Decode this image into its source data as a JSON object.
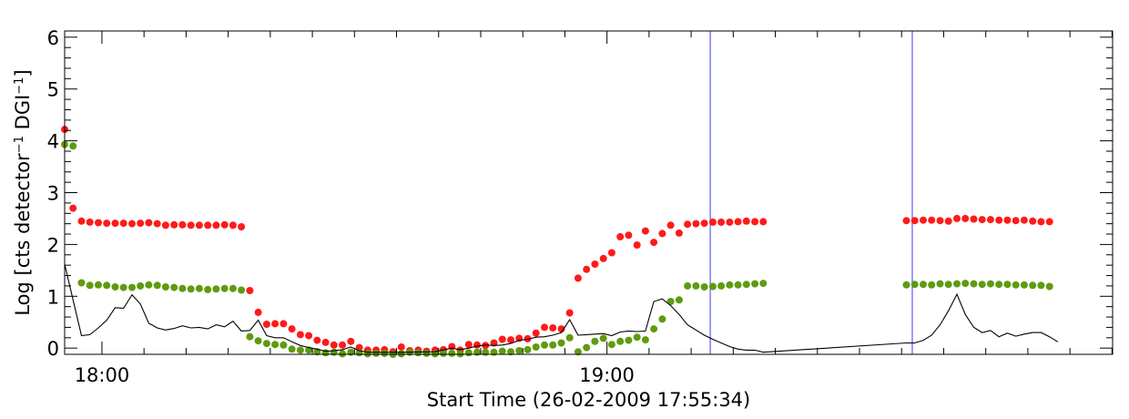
{
  "chart_data": {
    "type": "scatter",
    "xlabel": "Start Time (26-02-2009 17:55:34)",
    "ylabel_main": "Log [cts detector",
    "ylabel_sup1": "−1",
    "ylabel_mid": " DGI",
    "ylabel_sup2": "−1",
    "ylabel_end": "]",
    "x_unit": "minutes after 17:55:34",
    "xlim": [
      0,
      124.5
    ],
    "ylim": [
      -0.12,
      6.12
    ],
    "x_ticks": [
      {
        "x": 4.43,
        "label": "18:00"
      },
      {
        "x": 64.43,
        "label": "19:00"
      }
    ],
    "y_ticks": [
      0,
      1,
      2,
      3,
      4,
      5,
      6
    ],
    "grid": false,
    "vertical_lines": [
      {
        "x": 76.7,
        "color": "#3a3aff"
      },
      {
        "x": 100.7,
        "color": "#3a3aff"
      }
    ],
    "series": [
      {
        "color": "#ff1a1a",
        "style": "points",
        "points": [
          [
            0,
            4.22
          ],
          [
            1,
            2.7
          ],
          [
            2,
            2.45
          ],
          [
            3,
            2.43
          ],
          [
            4,
            2.42
          ],
          [
            5,
            2.41
          ],
          [
            6,
            2.41
          ],
          [
            7,
            2.41
          ],
          [
            8,
            2.4
          ],
          [
            9,
            2.41
          ],
          [
            10,
            2.42
          ],
          [
            11,
            2.4
          ],
          [
            12,
            2.37
          ],
          [
            13,
            2.38
          ],
          [
            14,
            2.38
          ],
          [
            15,
            2.37
          ],
          [
            16,
            2.37
          ],
          [
            17,
            2.37
          ],
          [
            18,
            2.37
          ],
          [
            19,
            2.38
          ],
          [
            20,
            2.37
          ],
          [
            21,
            2.34
          ],
          [
            22,
            1.11
          ],
          [
            23,
            0.69
          ],
          [
            24,
            0.46
          ],
          [
            25,
            0.47
          ],
          [
            26,
            0.47
          ],
          [
            27,
            0.37
          ],
          [
            28,
            0.26
          ],
          [
            29,
            0.24
          ],
          [
            30,
            0.15
          ],
          [
            31,
            0.11
          ],
          [
            32,
            0.06
          ],
          [
            33,
            0.06
          ],
          [
            34,
            0.13
          ],
          [
            35,
            0.01
          ],
          [
            36,
            -0.04
          ],
          [
            37,
            -0.04
          ],
          [
            38,
            -0.03
          ],
          [
            39,
            -0.07
          ],
          [
            40,
            0.02
          ],
          [
            41,
            -0.05
          ],
          [
            42,
            -0.04
          ],
          [
            43,
            -0.06
          ],
          [
            44,
            -0.04
          ],
          [
            45,
            -0.03
          ],
          [
            46,
            0.03
          ],
          [
            47,
            -0.04
          ],
          [
            48,
            0.07
          ],
          [
            49,
            0.06
          ],
          [
            50,
            0.05
          ],
          [
            51,
            0.1
          ],
          [
            52,
            0.17
          ],
          [
            53,
            0.16
          ],
          [
            54,
            0.19
          ],
          [
            55,
            0.18
          ],
          [
            56,
            0.29
          ],
          [
            57,
            0.4
          ],
          [
            58,
            0.39
          ],
          [
            59,
            0.37
          ],
          [
            60,
            0.68
          ],
          [
            61,
            1.35
          ],
          [
            62,
            1.52
          ],
          [
            63,
            1.62
          ],
          [
            64,
            1.73
          ],
          [
            65,
            1.84
          ],
          [
            66,
            2.15
          ],
          [
            67,
            2.18
          ],
          [
            68,
            1.99
          ],
          [
            69,
            2.26
          ],
          [
            70,
            2.04
          ],
          [
            71,
            2.21
          ],
          [
            72,
            2.37
          ],
          [
            73,
            2.22
          ],
          [
            74,
            2.39
          ],
          [
            75,
            2.4
          ],
          [
            76,
            2.41
          ],
          [
            77,
            2.43
          ],
          [
            78,
            2.43
          ],
          [
            79,
            2.43
          ],
          [
            80,
            2.44
          ],
          [
            81,
            2.45
          ],
          [
            82,
            2.44
          ],
          [
            83,
            2.44
          ],
          [
            100,
            2.46
          ],
          [
            101,
            2.46
          ],
          [
            102,
            2.47
          ],
          [
            103,
            2.47
          ],
          [
            104,
            2.46
          ],
          [
            105,
            2.45
          ],
          [
            106,
            2.5
          ],
          [
            107,
            2.5
          ],
          [
            108,
            2.49
          ],
          [
            109,
            2.48
          ],
          [
            110,
            2.48
          ],
          [
            111,
            2.47
          ],
          [
            112,
            2.47
          ],
          [
            113,
            2.46
          ],
          [
            114,
            2.47
          ],
          [
            115,
            2.45
          ],
          [
            116,
            2.44
          ],
          [
            117,
            2.44
          ]
        ]
      },
      {
        "color": "#5f9b0f",
        "style": "points",
        "points": [
          [
            0,
            3.93
          ],
          [
            1,
            3.9
          ],
          [
            2,
            1.26
          ],
          [
            3,
            1.21
          ],
          [
            4,
            1.22
          ],
          [
            5,
            1.21
          ],
          [
            6,
            1.18
          ],
          [
            7,
            1.17
          ],
          [
            8,
            1.17
          ],
          [
            9,
            1.2
          ],
          [
            10,
            1.22
          ],
          [
            11,
            1.21
          ],
          [
            12,
            1.18
          ],
          [
            13,
            1.17
          ],
          [
            14,
            1.15
          ],
          [
            15,
            1.14
          ],
          [
            16,
            1.15
          ],
          [
            17,
            1.13
          ],
          [
            18,
            1.14
          ],
          [
            19,
            1.15
          ],
          [
            20,
            1.15
          ],
          [
            21,
            1.12
          ],
          [
            22,
            0.22
          ],
          [
            23,
            0.14
          ],
          [
            24,
            0.09
          ],
          [
            25,
            0.07
          ],
          [
            26,
            0.06
          ],
          [
            27,
            -0.02
          ],
          [
            28,
            -0.04
          ],
          [
            29,
            -0.04
          ],
          [
            30,
            -0.07
          ],
          [
            31,
            -0.09
          ],
          [
            32,
            -0.08
          ],
          [
            33,
            -0.11
          ],
          [
            34,
            -0.08
          ],
          [
            35,
            -0.09
          ],
          [
            36,
            -0.11
          ],
          [
            37,
            -0.1
          ],
          [
            38,
            -0.1
          ],
          [
            39,
            -0.12
          ],
          [
            40,
            -0.11
          ],
          [
            41,
            -0.08
          ],
          [
            42,
            -0.09
          ],
          [
            43,
            -0.1
          ],
          [
            44,
            -0.11
          ],
          [
            45,
            -0.1
          ],
          [
            46,
            -0.1
          ],
          [
            47,
            -0.11
          ],
          [
            48,
            -0.09
          ],
          [
            49,
            -0.08
          ],
          [
            50,
            -0.08
          ],
          [
            51,
            -0.08
          ],
          [
            52,
            -0.06
          ],
          [
            53,
            -0.07
          ],
          [
            54,
            -0.05
          ],
          [
            55,
            -0.03
          ],
          [
            56,
            0.02
          ],
          [
            57,
            0.06
          ],
          [
            58,
            0.06
          ],
          [
            59,
            0.1
          ],
          [
            60,
            0.2
          ],
          [
            61,
            -0.07
          ],
          [
            62,
            0.01
          ],
          [
            63,
            0.13
          ],
          [
            64,
            0.19
          ],
          [
            65,
            0.07
          ],
          [
            66,
            0.13
          ],
          [
            67,
            0.15
          ],
          [
            68,
            0.21
          ],
          [
            69,
            0.16
          ],
          [
            70,
            0.37
          ],
          [
            71,
            0.56
          ],
          [
            72,
            0.9
          ],
          [
            73,
            0.93
          ],
          [
            74,
            1.2
          ],
          [
            75,
            1.2
          ],
          [
            76,
            1.18
          ],
          [
            77,
            1.19
          ],
          [
            78,
            1.2
          ],
          [
            79,
            1.22
          ],
          [
            80,
            1.22
          ],
          [
            81,
            1.23
          ],
          [
            82,
            1.24
          ],
          [
            83,
            1.25
          ],
          [
            100,
            1.22
          ],
          [
            101,
            1.23
          ],
          [
            102,
            1.23
          ],
          [
            103,
            1.22
          ],
          [
            104,
            1.24
          ],
          [
            105,
            1.23
          ],
          [
            106,
            1.24
          ],
          [
            107,
            1.25
          ],
          [
            108,
            1.24
          ],
          [
            109,
            1.23
          ],
          [
            110,
            1.24
          ],
          [
            111,
            1.23
          ],
          [
            112,
            1.23
          ],
          [
            113,
            1.22
          ],
          [
            114,
            1.22
          ],
          [
            115,
            1.21
          ],
          [
            116,
            1.21
          ],
          [
            117,
            1.19
          ]
        ]
      },
      {
        "color": "#000000",
        "style": "line",
        "points": [
          [
            0,
            1.62
          ],
          [
            2,
            0.24
          ],
          [
            3,
            0.26
          ],
          [
            4,
            0.39
          ],
          [
            5,
            0.54
          ],
          [
            6,
            0.78
          ],
          [
            7,
            0.77
          ],
          [
            8,
            1.03
          ],
          [
            9,
            0.85
          ],
          [
            10,
            0.48
          ],
          [
            11,
            0.39
          ],
          [
            12,
            0.35
          ],
          [
            13,
            0.38
          ],
          [
            14,
            0.43
          ],
          [
            15,
            0.39
          ],
          [
            16,
            0.4
          ],
          [
            17,
            0.37
          ],
          [
            18,
            0.45
          ],
          [
            19,
            0.41
          ],
          [
            20,
            0.52
          ],
          [
            21,
            0.33
          ],
          [
            22,
            0.34
          ],
          [
            23,
            0.54
          ],
          [
            24,
            0.24
          ],
          [
            25,
            0.2
          ],
          [
            26,
            0.2
          ],
          [
            27,
            0.12
          ],
          [
            28,
            0.05
          ],
          [
            29,
            0.01
          ],
          [
            30,
            -0.02
          ],
          [
            31,
            -0.06
          ],
          [
            32,
            -0.05
          ],
          [
            33,
            -0.03
          ],
          [
            34,
            0.02
          ],
          [
            35,
            -0.05
          ],
          [
            36,
            -0.08
          ],
          [
            38,
            -0.08
          ],
          [
            40,
            -0.08
          ],
          [
            44,
            -0.07
          ],
          [
            46,
            0.0
          ],
          [
            47,
            -0.03
          ],
          [
            48,
            0.0
          ],
          [
            49,
            0.04
          ],
          [
            50,
            0.06
          ],
          [
            51,
            0.05
          ],
          [
            52,
            0.06
          ],
          [
            53,
            0.09
          ],
          [
            54,
            0.15
          ],
          [
            55,
            0.17
          ],
          [
            56,
            0.21
          ],
          [
            57,
            0.22
          ],
          [
            58,
            0.25
          ],
          [
            59,
            0.3
          ],
          [
            60,
            0.55
          ],
          [
            61,
            0.25
          ],
          [
            62,
            0.26
          ],
          [
            63,
            0.27
          ],
          [
            64,
            0.28
          ],
          [
            65,
            0.24
          ],
          [
            66,
            0.31
          ],
          [
            67,
            0.33
          ],
          [
            68,
            0.32
          ],
          [
            69,
            0.33
          ],
          [
            70,
            0.9
          ],
          [
            71,
            0.95
          ],
          [
            72,
            0.82
          ],
          [
            73,
            0.65
          ],
          [
            74,
            0.45
          ],
          [
            75,
            0.35
          ],
          [
            76,
            0.25
          ],
          [
            77,
            0.17
          ],
          [
            78,
            0.1
          ],
          [
            79,
            0.03
          ],
          [
            80,
            -0.02
          ],
          [
            81,
            -0.04
          ],
          [
            82,
            -0.04
          ],
          [
            83,
            -0.08
          ],
          [
            100,
            0.1
          ],
          [
            101,
            0.1
          ],
          [
            102,
            0.15
          ],
          [
            103,
            0.25
          ],
          [
            104,
            0.45
          ],
          [
            105,
            0.72
          ],
          [
            106,
            1.04
          ],
          [
            107,
            0.65
          ],
          [
            108,
            0.4
          ],
          [
            109,
            0.3
          ],
          [
            110,
            0.34
          ],
          [
            111,
            0.22
          ],
          [
            112,
            0.29
          ],
          [
            113,
            0.23
          ],
          [
            114,
            0.27
          ],
          [
            115,
            0.3
          ],
          [
            116,
            0.3
          ],
          [
            117,
            0.22
          ],
          [
            118,
            0.12
          ]
        ]
      }
    ]
  }
}
